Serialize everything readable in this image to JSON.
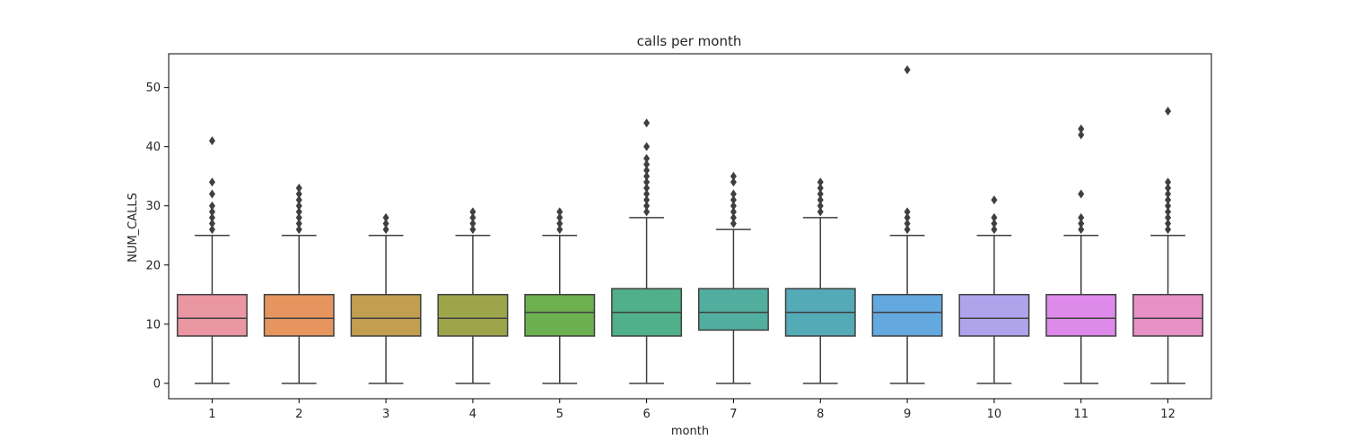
{
  "chart_data": {
    "type": "box",
    "title": "calls per month",
    "xlabel": "month",
    "ylabel": "NUM_CALLS",
    "ylim": [
      -2.6,
      55.7
    ],
    "yticks": [
      0,
      10,
      20,
      30,
      40,
      50
    ],
    "grid": false,
    "categories": [
      "1",
      "2",
      "3",
      "4",
      "5",
      "6",
      "7",
      "8",
      "9",
      "10",
      "11",
      "12"
    ],
    "boxes": [
      {
        "category": "1",
        "whisker_low": 0,
        "q1": 8,
        "median": 11,
        "q3": 15,
        "whisker_high": 25,
        "outliers": [
          26,
          27,
          28,
          29,
          30,
          32,
          34,
          41
        ]
      },
      {
        "category": "2",
        "whisker_low": 0,
        "q1": 8,
        "median": 11,
        "q3": 15,
        "whisker_high": 25,
        "outliers": [
          26,
          27,
          28,
          29,
          30,
          31,
          32,
          33
        ]
      },
      {
        "category": "3",
        "whisker_low": 0,
        "q1": 8,
        "median": 11,
        "q3": 15,
        "whisker_high": 25,
        "outliers": [
          26,
          27,
          28
        ]
      },
      {
        "category": "4",
        "whisker_low": 0,
        "q1": 8,
        "median": 11,
        "q3": 15,
        "whisker_high": 25,
        "outliers": [
          26,
          27,
          28,
          29
        ]
      },
      {
        "category": "5",
        "whisker_low": 0,
        "q1": 8,
        "median": 12,
        "q3": 15,
        "whisker_high": 25,
        "outliers": [
          26,
          27,
          28,
          29
        ]
      },
      {
        "category": "6",
        "whisker_low": 0,
        "q1": 8,
        "median": 12,
        "q3": 16,
        "whisker_high": 28,
        "outliers": [
          29,
          30,
          31,
          32,
          33,
          34,
          35,
          36,
          37,
          38,
          40,
          44
        ]
      },
      {
        "category": "7",
        "whisker_low": 0,
        "q1": 9,
        "median": 12,
        "q3": 16,
        "whisker_high": 26,
        "outliers": [
          27,
          28,
          29,
          30,
          31,
          32,
          34,
          35
        ]
      },
      {
        "category": "8",
        "whisker_low": 0,
        "q1": 8,
        "median": 12,
        "q3": 16,
        "whisker_high": 28,
        "outliers": [
          29,
          30,
          31,
          32,
          33,
          34
        ]
      },
      {
        "category": "9",
        "whisker_low": 0,
        "q1": 8,
        "median": 12,
        "q3": 15,
        "whisker_high": 25,
        "outliers": [
          26,
          27,
          28,
          29,
          53
        ]
      },
      {
        "category": "10",
        "whisker_low": 0,
        "q1": 8,
        "median": 11,
        "q3": 15,
        "whisker_high": 25,
        "outliers": [
          26,
          27,
          28,
          31
        ]
      },
      {
        "category": "11",
        "whisker_low": 0,
        "q1": 8,
        "median": 11,
        "q3": 15,
        "whisker_high": 25,
        "outliers": [
          26,
          27,
          28,
          32,
          42,
          43
        ]
      },
      {
        "category": "12",
        "whisker_low": 0,
        "q1": 8,
        "median": 11,
        "q3": 15,
        "whisker_high": 25,
        "outliers": [
          26,
          27,
          28,
          29,
          30,
          31,
          32,
          33,
          34,
          46
        ]
      }
    ],
    "colors": [
      "#ea96a3",
      "#e6955f",
      "#c19e50",
      "#9da54b",
      "#6db04f",
      "#50b08c",
      "#52ae9f",
      "#54aab7",
      "#64a8e0",
      "#afa3eb",
      "#dd8aea",
      "#e891c6"
    ],
    "line_color": "#3f3f3f"
  }
}
